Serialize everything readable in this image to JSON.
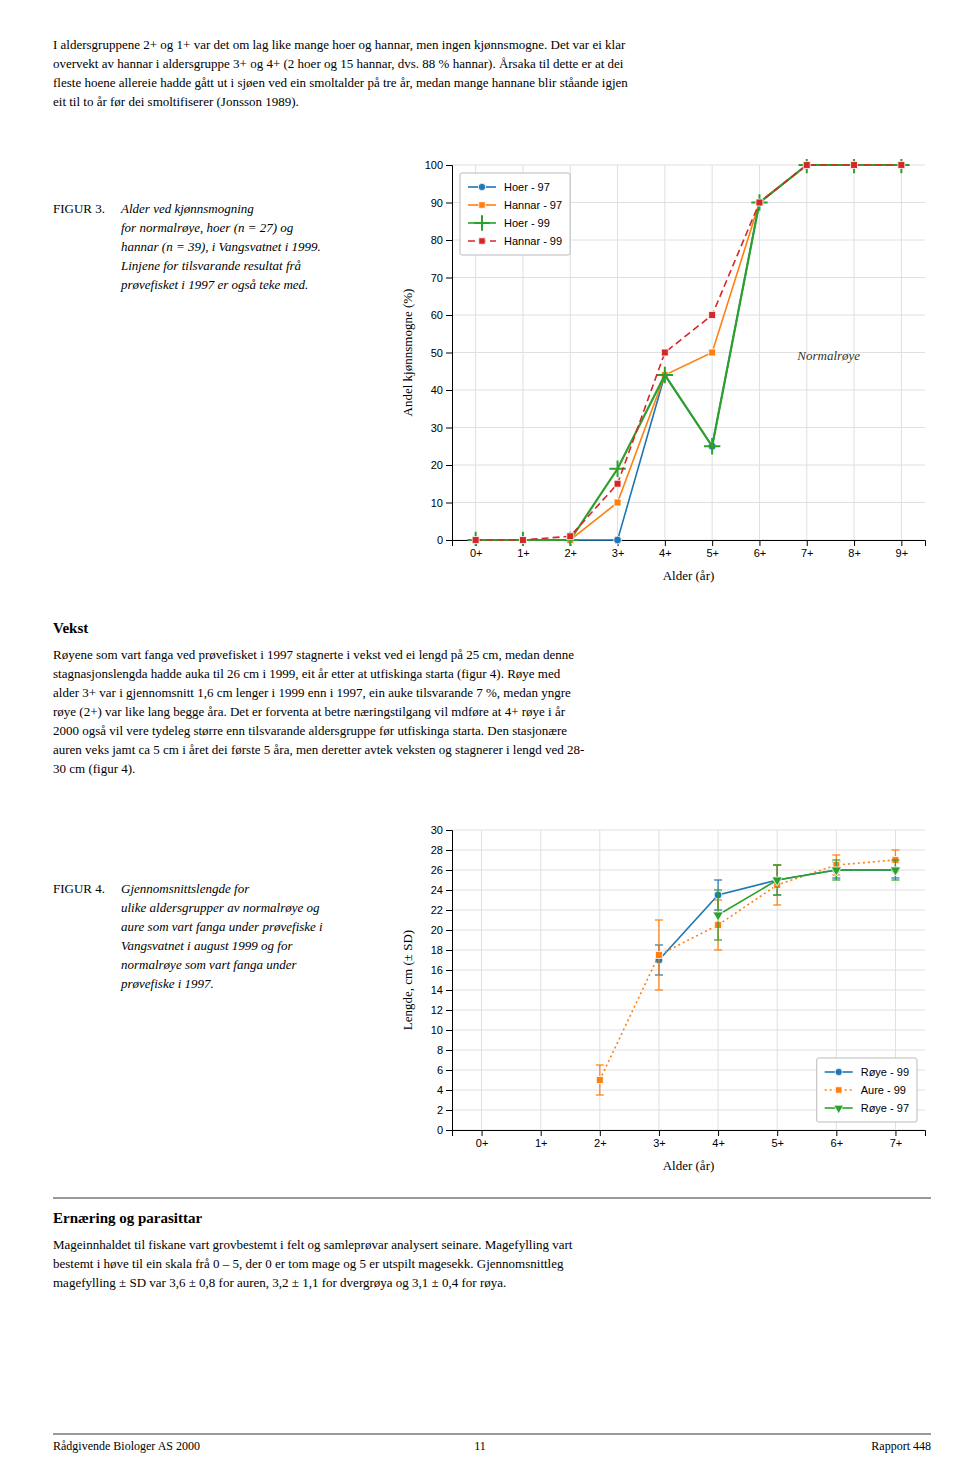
{
  "chart_data": [
    {
      "type": "line",
      "title": "FIGUR 3.",
      "subtitle": "Alder ved kjønnsmogning\nfor normalrøye, hoer (n = 27) og\nhannar (n = 39), i Vangsvatnet i 1999.\nLinjene for tilsvarande resultat frå\nprøvefisket i 1997 er også teke med.",
      "categories": [
        "0+",
        "1+",
        "2+",
        "3+",
        "4+",
        "5+",
        "6+",
        "7+",
        "8+",
        "9+"
      ],
      "series": [
        {
          "name": "Hoer - 97",
          "marker": "circle",
          "line_style": "solid",
          "values": [
            0,
            0,
            0,
            0,
            44,
            25,
            90,
            100,
            100,
            100
          ]
        },
        {
          "name": "Hannar - 97",
          "marker": "square",
          "line_style": "solid",
          "values": [
            0,
            0,
            0,
            10,
            44,
            50,
            90,
            100,
            100,
            100
          ]
        },
        {
          "name": "Hoer - 99",
          "marker": "plus",
          "line_style": "solid",
          "values": [
            0,
            0,
            0,
            19,
            44,
            25,
            90,
            100,
            100,
            100
          ]
        },
        {
          "name": "Hannar - 99",
          "marker": "square",
          "line_style": "dashed",
          "values": [
            0,
            0,
            1,
            15,
            50,
            60,
            90,
            100,
            100,
            100
          ]
        }
      ],
      "xlabel": "Alder (år)",
      "ylabel": "Andel kjønnsmogne (%)",
      "ylim": [
        0,
        100
      ],
      "yticks": [
        0,
        10,
        20,
        30,
        40,
        50,
        60,
        70,
        80,
        90,
        100
      ],
      "grid": true,
      "legend": "upper left",
      "annotation": "Normalrøye"
    },
    {
      "type": "line",
      "title": "FIGUR 4.",
      "subtitle": "Gjennomsnittslengde for\nulike aldersgrupper av normalrøye og\naure som vart fanga under prøvefiske i\nVangsvatnet i august 1999 og for\nnormalrøye som vart fanga under\nprøvefiske i 1997.",
      "categories": [
        "0+",
        "1+",
        "2+",
        "3+",
        "4+",
        "5+",
        "6+",
        "7+"
      ],
      "series": [
        {
          "name": "Røye - 99",
          "marker": "circle",
          "line_style": "solid",
          "values": [
            null,
            null,
            null,
            17.0,
            23.5,
            25.0,
            26.0,
            26.0
          ],
          "errors": [
            null,
            null,
            null,
            1.5,
            1.5,
            1.5,
            0.8,
            0.8
          ]
        },
        {
          "name": "Aure - 99",
          "marker": "square",
          "line_style": "dotted",
          "values": [
            null,
            null,
            5.0,
            17.5,
            20.5,
            24.5,
            26.5,
            27.0
          ],
          "errors": [
            null,
            null,
            1.5,
            3.5,
            2.5,
            2.0,
            1.0,
            1.0
          ]
        },
        {
          "name": "Røye - 97",
          "marker": "triangle-down",
          "line_style": "solid",
          "values": [
            null,
            null,
            null,
            null,
            21.5,
            25.0,
            26.0,
            26.0
          ],
          "errors": [
            null,
            null,
            null,
            null,
            2.5,
            1.5,
            1.0,
            1.0
          ]
        }
      ],
      "xlabel": "Alder (år)",
      "ylabel": "Lengde, cm (± SD)",
      "ylim": [
        0,
        30
      ],
      "yticks": [
        0,
        2,
        4,
        6,
        8,
        10,
        12,
        14,
        16,
        18,
        20,
        22,
        24,
        26,
        28,
        30
      ],
      "grid": true,
      "legend": "lower right"
    }
  ],
  "texts": {
    "para1": "I aldersgruppene 2+ og 1+ var det om lag like mange hoer og hannar, men ingen kjønnsmogne. Det var ei klar\novervekt av hannar i aldersgruppe 3+ og 4+ (2 hoer og 15 hannar, dvs. 88 % hannar). Årsaka til dette er at dei\nfleste hoene allereie hadde gått ut i sjøen ved ein smoltalder på tre år, medan mange hannane blir ståande igjen\neit til to år før dei smoltifiserer (Jonsson 1989).",
    "vekst_heading": "Vekst",
    "para2": "Røyene som vart fanga ved prøvefisket i 1997 stagnerte i vekst ved ei lengd på 25 cm, medan denne\nstagnasjonslengda hadde auka til 26 cm i 1999, eit år etter at utfiskinga starta (figur 4). Røye med\nalder 3+ var i gjennomsnitt 1,6 cm lenger i 1999 enn i 1997, ein auke tilsvarande 7 %, medan yngre\nrøye (2+) var like lang begge åra. Det er forventa at betre næringstilgang vil mdføre at 4+ røye i år\n2000 også vil vere tydeleg større enn tilsvarande aldersgruppe før utfiskinga starta. Den stasjonære\nauren veks jamt ca 5 cm i året dei første 5 åra, men deretter avtek veksten og stagnerer i lengd ved 28-\n30 cm (figur 4).",
    "ernering_heading": "Ernæring og parasittar",
    "para3": "Mageinnhaldet til fiskane vart grovbestemt i felt og samleprøvar analysert seinare. Magefylling vart\nbestemt i høve til ein skala frå 0 – 5, der 0 er tom mage og 5 er utspilt magesekk. Gjennomsnittleg\nmagefylling ± SD var 3,6 ± 0,8 for auren, 3,2 ± 1,1 for dvergrøya og 3,1 ± 0,4 for røya.",
    "footer_left": "Rådgivende Biologer AS 2000",
    "footer_center": "11",
    "footer_right": "Rapport 448"
  }
}
